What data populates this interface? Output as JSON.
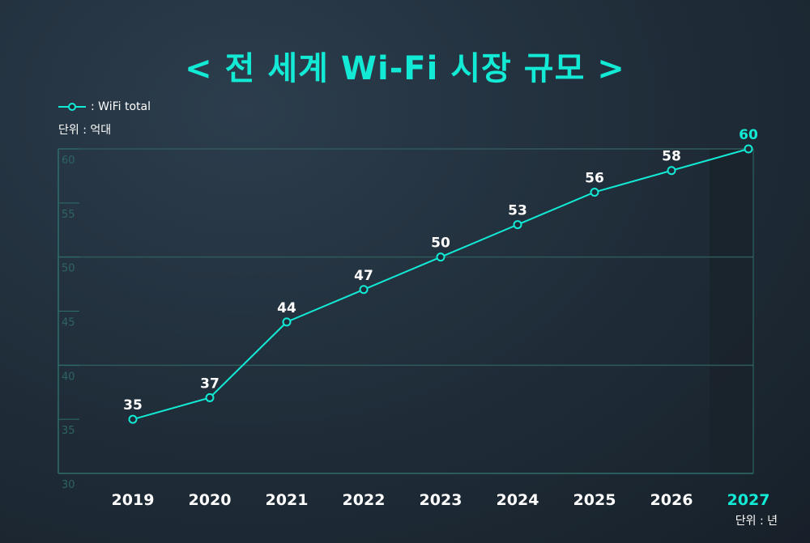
{
  "title": "< 전 세계 Wi-Fi 시장 규모 >",
  "legend_label": ": WiFi total",
  "y_unit": "단위 : 억대",
  "x_unit": "단위 : 년",
  "colors": {
    "accent": "#13ead6",
    "grid": "#2f5a5a",
    "axis": "#2e6e6b",
    "tick": "#2e6464",
    "label": "#ffffff",
    "highlight_band": "#1a232b"
  },
  "chart_data": {
    "type": "line",
    "x": [
      "2019",
      "2020",
      "2021",
      "2022",
      "2023",
      "2024",
      "2025",
      "2026",
      "2027"
    ],
    "series": [
      {
        "name": "WiFi total",
        "values": [
          35,
          37,
          44,
          47,
          50,
          53,
          56,
          58,
          60
        ]
      }
    ],
    "ylim": [
      30,
      60
    ],
    "yticks": [
      30,
      35,
      40,
      45,
      50,
      55,
      60
    ],
    "grid": "horizontal at 40, 50, 60",
    "highlight_category": "2027",
    "legend_position": "top-left"
  }
}
